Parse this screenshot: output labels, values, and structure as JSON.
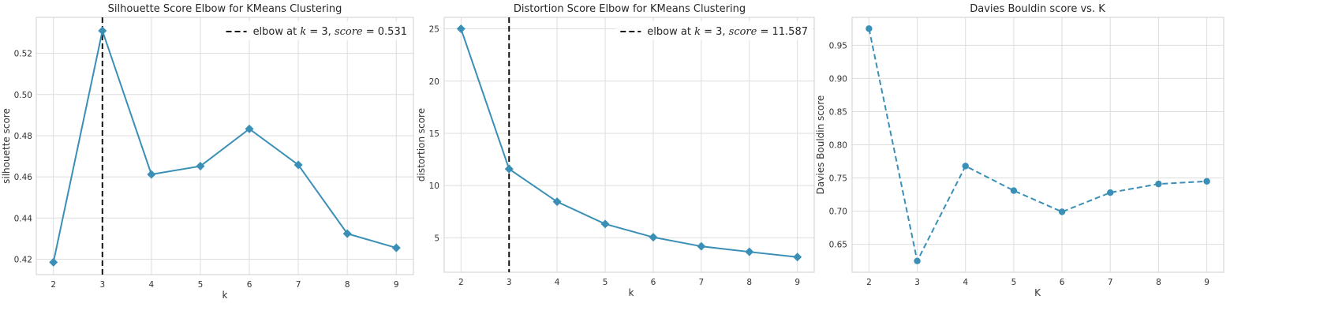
{
  "chart_data": [
    {
      "type": "line",
      "title": "Silhouette Score Elbow for KMeans Clustering",
      "xlabel": "k",
      "ylabel": "silhouette score",
      "x": [
        2,
        3,
        4,
        5,
        6,
        7,
        8,
        9
      ],
      "xticks": [
        "2",
        "3",
        "4",
        "5",
        "6",
        "7",
        "8",
        "9"
      ],
      "yticks": [
        "0.42",
        "0.44",
        "0.46",
        "0.48",
        "0.50",
        "0.52"
      ],
      "xlim": [
        1.65,
        9.35
      ],
      "ylim": [
        0.4125,
        0.5375
      ],
      "grid": true,
      "color": "#3a8fb7",
      "marker": "diamond",
      "linestyle": "solid",
      "series": [
        {
          "values": [
            0.4185,
            0.531,
            0.4612,
            0.4652,
            0.4833,
            0.4658,
            0.4324,
            0.4255
          ]
        }
      ],
      "elbow": {
        "x": 3,
        "color": "#111111",
        "linestyle": "dashed"
      },
      "legend": {
        "placement": "top-right",
        "prefix": "elbow at ",
        "k_var": "k",
        "eq1": " = 3, ",
        "score_var": "score",
        "eq2": " = 0.531"
      }
    },
    {
      "type": "line",
      "title": "Distortion Score Elbow for KMeans Clustering",
      "xlabel": "k",
      "ylabel": "distortion score",
      "x": [
        2,
        3,
        4,
        5,
        6,
        7,
        8,
        9
      ],
      "xticks": [
        "2",
        "3",
        "4",
        "5",
        "6",
        "7",
        "8",
        "9"
      ],
      "yticks": [
        "5",
        "10",
        "15",
        "20",
        "25"
      ],
      "xlim": [
        1.65,
        9.35
      ],
      "ylim": [
        1.7,
        26.1
      ],
      "grid": true,
      "color": "#3a8fb7",
      "marker": "diamond",
      "linestyle": "solid",
      "series": [
        {
          "values": [
            25.0,
            11.587,
            8.45,
            6.32,
            5.05,
            4.18,
            3.65,
            3.15
          ]
        }
      ],
      "elbow": {
        "x": 3,
        "color": "#111111",
        "linestyle": "dashed"
      },
      "legend": {
        "placement": "top-right",
        "prefix": "elbow at ",
        "k_var": "k",
        "eq1": " = 3, ",
        "score_var": "score",
        "eq2": " = 11.587"
      }
    },
    {
      "type": "line",
      "title": "Davies Bouldin score vs. K",
      "xlabel": "K",
      "ylabel": "Davies Bouldin score",
      "x": [
        2,
        3,
        4,
        5,
        6,
        7,
        8,
        9
      ],
      "xticks": [
        "2",
        "3",
        "4",
        "5",
        "6",
        "7",
        "8",
        "9"
      ],
      "yticks": [
        "0.65",
        "0.70",
        "0.75",
        "0.80",
        "0.85",
        "0.90",
        "0.95"
      ],
      "xlim": [
        1.65,
        9.35
      ],
      "ylim": [
        0.608,
        0.992
      ],
      "grid": true,
      "color": "#3a8fb7",
      "marker": "circle",
      "linestyle": "dashed",
      "series": [
        {
          "values": [
            0.975,
            0.625,
            0.768,
            0.731,
            0.699,
            0.728,
            0.741,
            0.745
          ]
        }
      ]
    }
  ]
}
